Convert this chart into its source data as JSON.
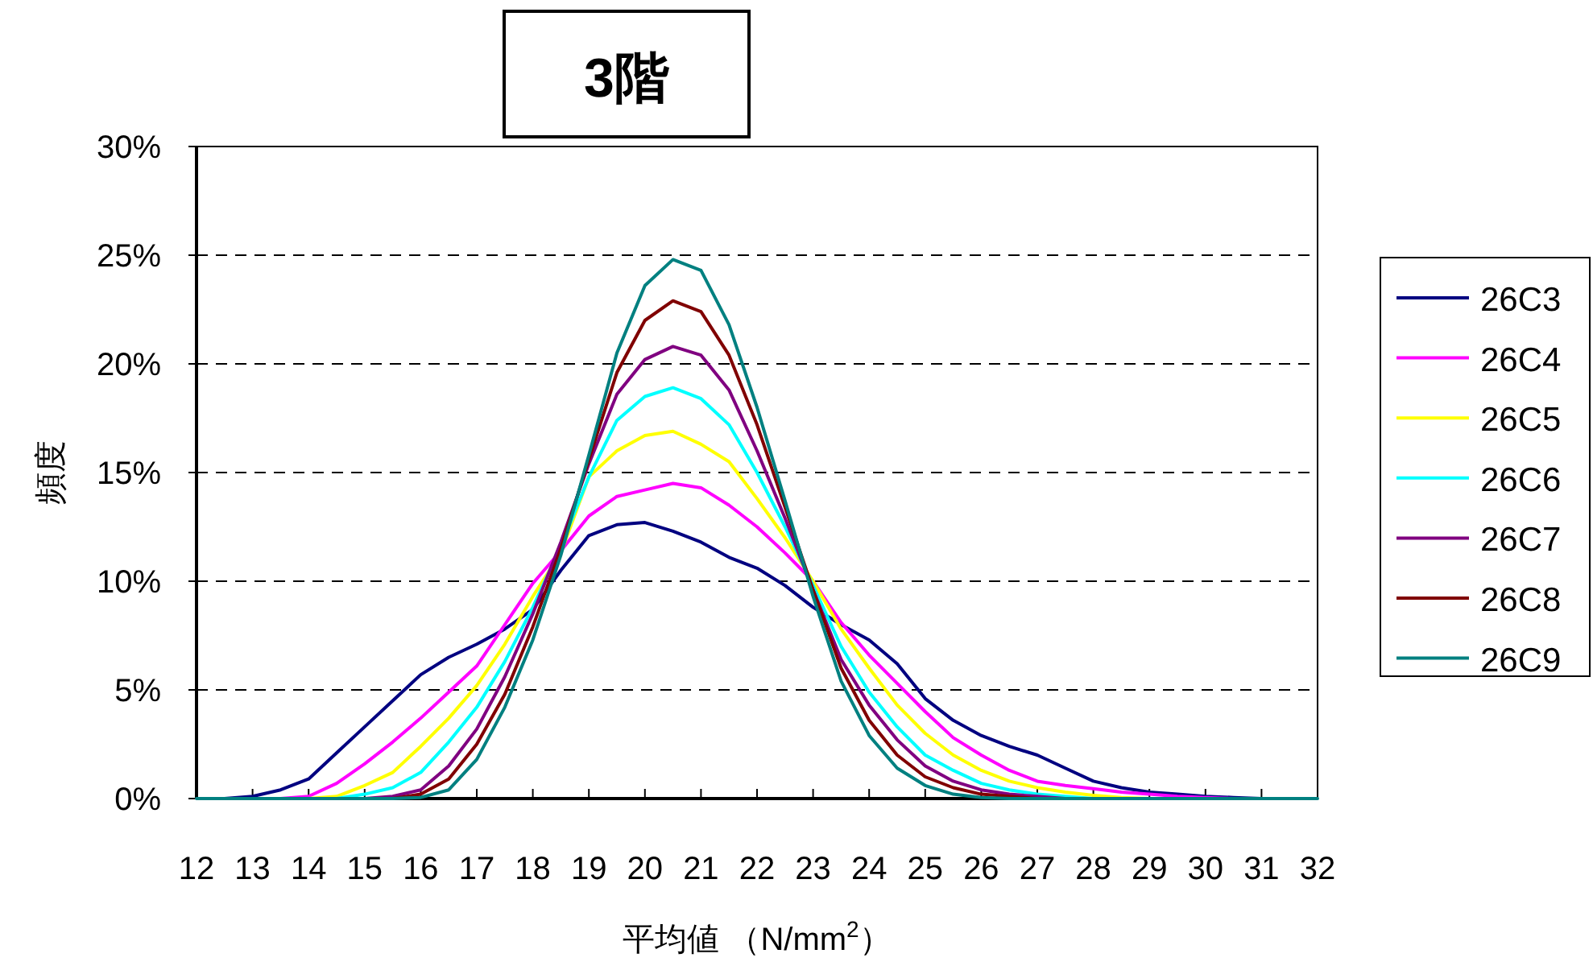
{
  "chart_data": {
    "type": "line",
    "title": "3階",
    "xlabel": "平均値 （N/mm$^{2}$）",
    "ylabel": "頻度",
    "x": [
      12,
      12.5,
      13,
      13.5,
      14,
      14.5,
      15,
      15.5,
      16,
      16.5,
      17,
      17.5,
      18,
      18.5,
      19,
      19.5,
      20,
      20.5,
      21,
      21.5,
      22,
      22.5,
      23,
      23.5,
      24,
      24.5,
      25,
      25.5,
      26,
      26.5,
      27,
      27.5,
      28,
      28.5,
      29,
      29.5,
      30,
      30.5,
      31,
      31.5,
      32
    ],
    "xlim": [
      12,
      32
    ],
    "xticks": [
      12,
      13,
      14,
      15,
      16,
      17,
      18,
      19,
      20,
      21,
      22,
      23,
      24,
      25,
      26,
      27,
      28,
      29,
      30,
      31,
      32
    ],
    "ylim": [
      0,
      30
    ],
    "yticks": [
      {
        "value": 0,
        "label": "0%"
      },
      {
        "value": 5,
        "label": "5%"
      },
      {
        "value": 10,
        "label": "10%"
      },
      {
        "value": 15,
        "label": "15%"
      },
      {
        "value": 20,
        "label": "20%"
      },
      {
        "value": 25,
        "label": "25%"
      },
      {
        "value": 30,
        "label": "30%"
      }
    ],
    "grid": "y",
    "legend": "right",
    "marker": "none",
    "line_style": "solid",
    "series": [
      {
        "name": "26C3",
        "color": "#000080",
        "values": [
          null,
          0,
          0.1,
          0.4,
          0.9,
          2.1,
          3.3,
          4.5,
          5.7,
          6.5,
          7.1,
          7.8,
          8.7,
          10.5,
          12.1,
          12.6,
          12.7,
          12.3,
          11.8,
          11.1,
          10.6,
          9.8,
          8.8,
          8.0,
          7.3,
          6.2,
          4.6,
          3.6,
          2.9,
          2.4,
          2.0,
          1.4,
          0.8,
          0.5,
          0.3,
          0.2,
          0.1,
          0.05,
          0,
          null,
          null
        ]
      },
      {
        "name": "26C4",
        "color": "#ff00ff",
        "values": [
          null,
          null,
          null,
          0,
          0.1,
          0.7,
          1.6,
          2.6,
          3.7,
          4.9,
          6.1,
          8.0,
          9.9,
          11.4,
          13.0,
          13.9,
          14.2,
          14.5,
          14.3,
          13.5,
          12.5,
          11.3,
          10.0,
          8.1,
          6.6,
          5.3,
          4.0,
          2.8,
          2.0,
          1.3,
          0.8,
          0.6,
          0.45,
          0.3,
          0.2,
          0.1,
          0.05,
          0,
          null,
          null,
          null
        ]
      },
      {
        "name": "26C5",
        "color": "#ffff00",
        "values": [
          null,
          null,
          null,
          null,
          0,
          0.1,
          0.6,
          1.2,
          2.4,
          3.7,
          5.2,
          7.1,
          9.3,
          11.3,
          14.8,
          16.0,
          16.7,
          16.9,
          16.3,
          15.5,
          13.8,
          12.0,
          10.0,
          7.8,
          6.0,
          4.3,
          3.0,
          2.0,
          1.3,
          0.8,
          0.5,
          0.3,
          0.15,
          0.05,
          0,
          null,
          null,
          null,
          null,
          null,
          null
        ]
      },
      {
        "name": "26C6",
        "color": "#00ffff",
        "values": [
          null,
          null,
          null,
          null,
          null,
          0,
          0.2,
          0.5,
          1.2,
          2.6,
          4.2,
          6.3,
          8.8,
          11.6,
          14.8,
          17.4,
          18.5,
          18.9,
          18.4,
          17.2,
          15.0,
          12.5,
          9.8,
          7.0,
          4.9,
          3.3,
          2.0,
          1.3,
          0.7,
          0.4,
          0.2,
          0.1,
          0,
          null,
          null,
          null,
          null,
          null,
          null,
          null,
          null
        ]
      },
      {
        "name": "26C7",
        "color": "#800080",
        "values": [
          null,
          null,
          null,
          null,
          null,
          null,
          0,
          0.1,
          0.4,
          1.5,
          3.2,
          5.6,
          8.5,
          11.8,
          15.4,
          18.6,
          20.2,
          20.8,
          20.4,
          18.8,
          16.0,
          12.9,
          9.6,
          6.4,
          4.3,
          2.7,
          1.5,
          0.8,
          0.4,
          0.2,
          0.1,
          0,
          null,
          null,
          null,
          null,
          null,
          null,
          null,
          null,
          null
        ]
      },
      {
        "name": "26C8",
        "color": "#800000",
        "values": [
          null,
          null,
          null,
          null,
          null,
          null,
          null,
          0,
          0.2,
          0.9,
          2.5,
          4.8,
          7.9,
          11.5,
          15.6,
          19.6,
          22.0,
          22.9,
          22.4,
          20.4,
          17.2,
          13.4,
          9.6,
          6.0,
          3.6,
          2.0,
          1.0,
          0.5,
          0.2,
          0.1,
          0,
          null,
          null,
          null,
          null,
          null,
          null,
          null,
          null,
          null,
          null
        ]
      },
      {
        "name": "26C9",
        "color": "#008080",
        "values": [
          0,
          0,
          0,
          0,
          0,
          0,
          0,
          0,
          0.05,
          0.4,
          1.8,
          4.2,
          7.3,
          11.2,
          15.8,
          20.5,
          23.6,
          24.8,
          24.3,
          21.8,
          18.0,
          13.7,
          9.3,
          5.4,
          2.9,
          1.4,
          0.6,
          0.2,
          0.05,
          0,
          0,
          0,
          0,
          0,
          0,
          0,
          0,
          0,
          0,
          0,
          0
        ]
      }
    ]
  }
}
